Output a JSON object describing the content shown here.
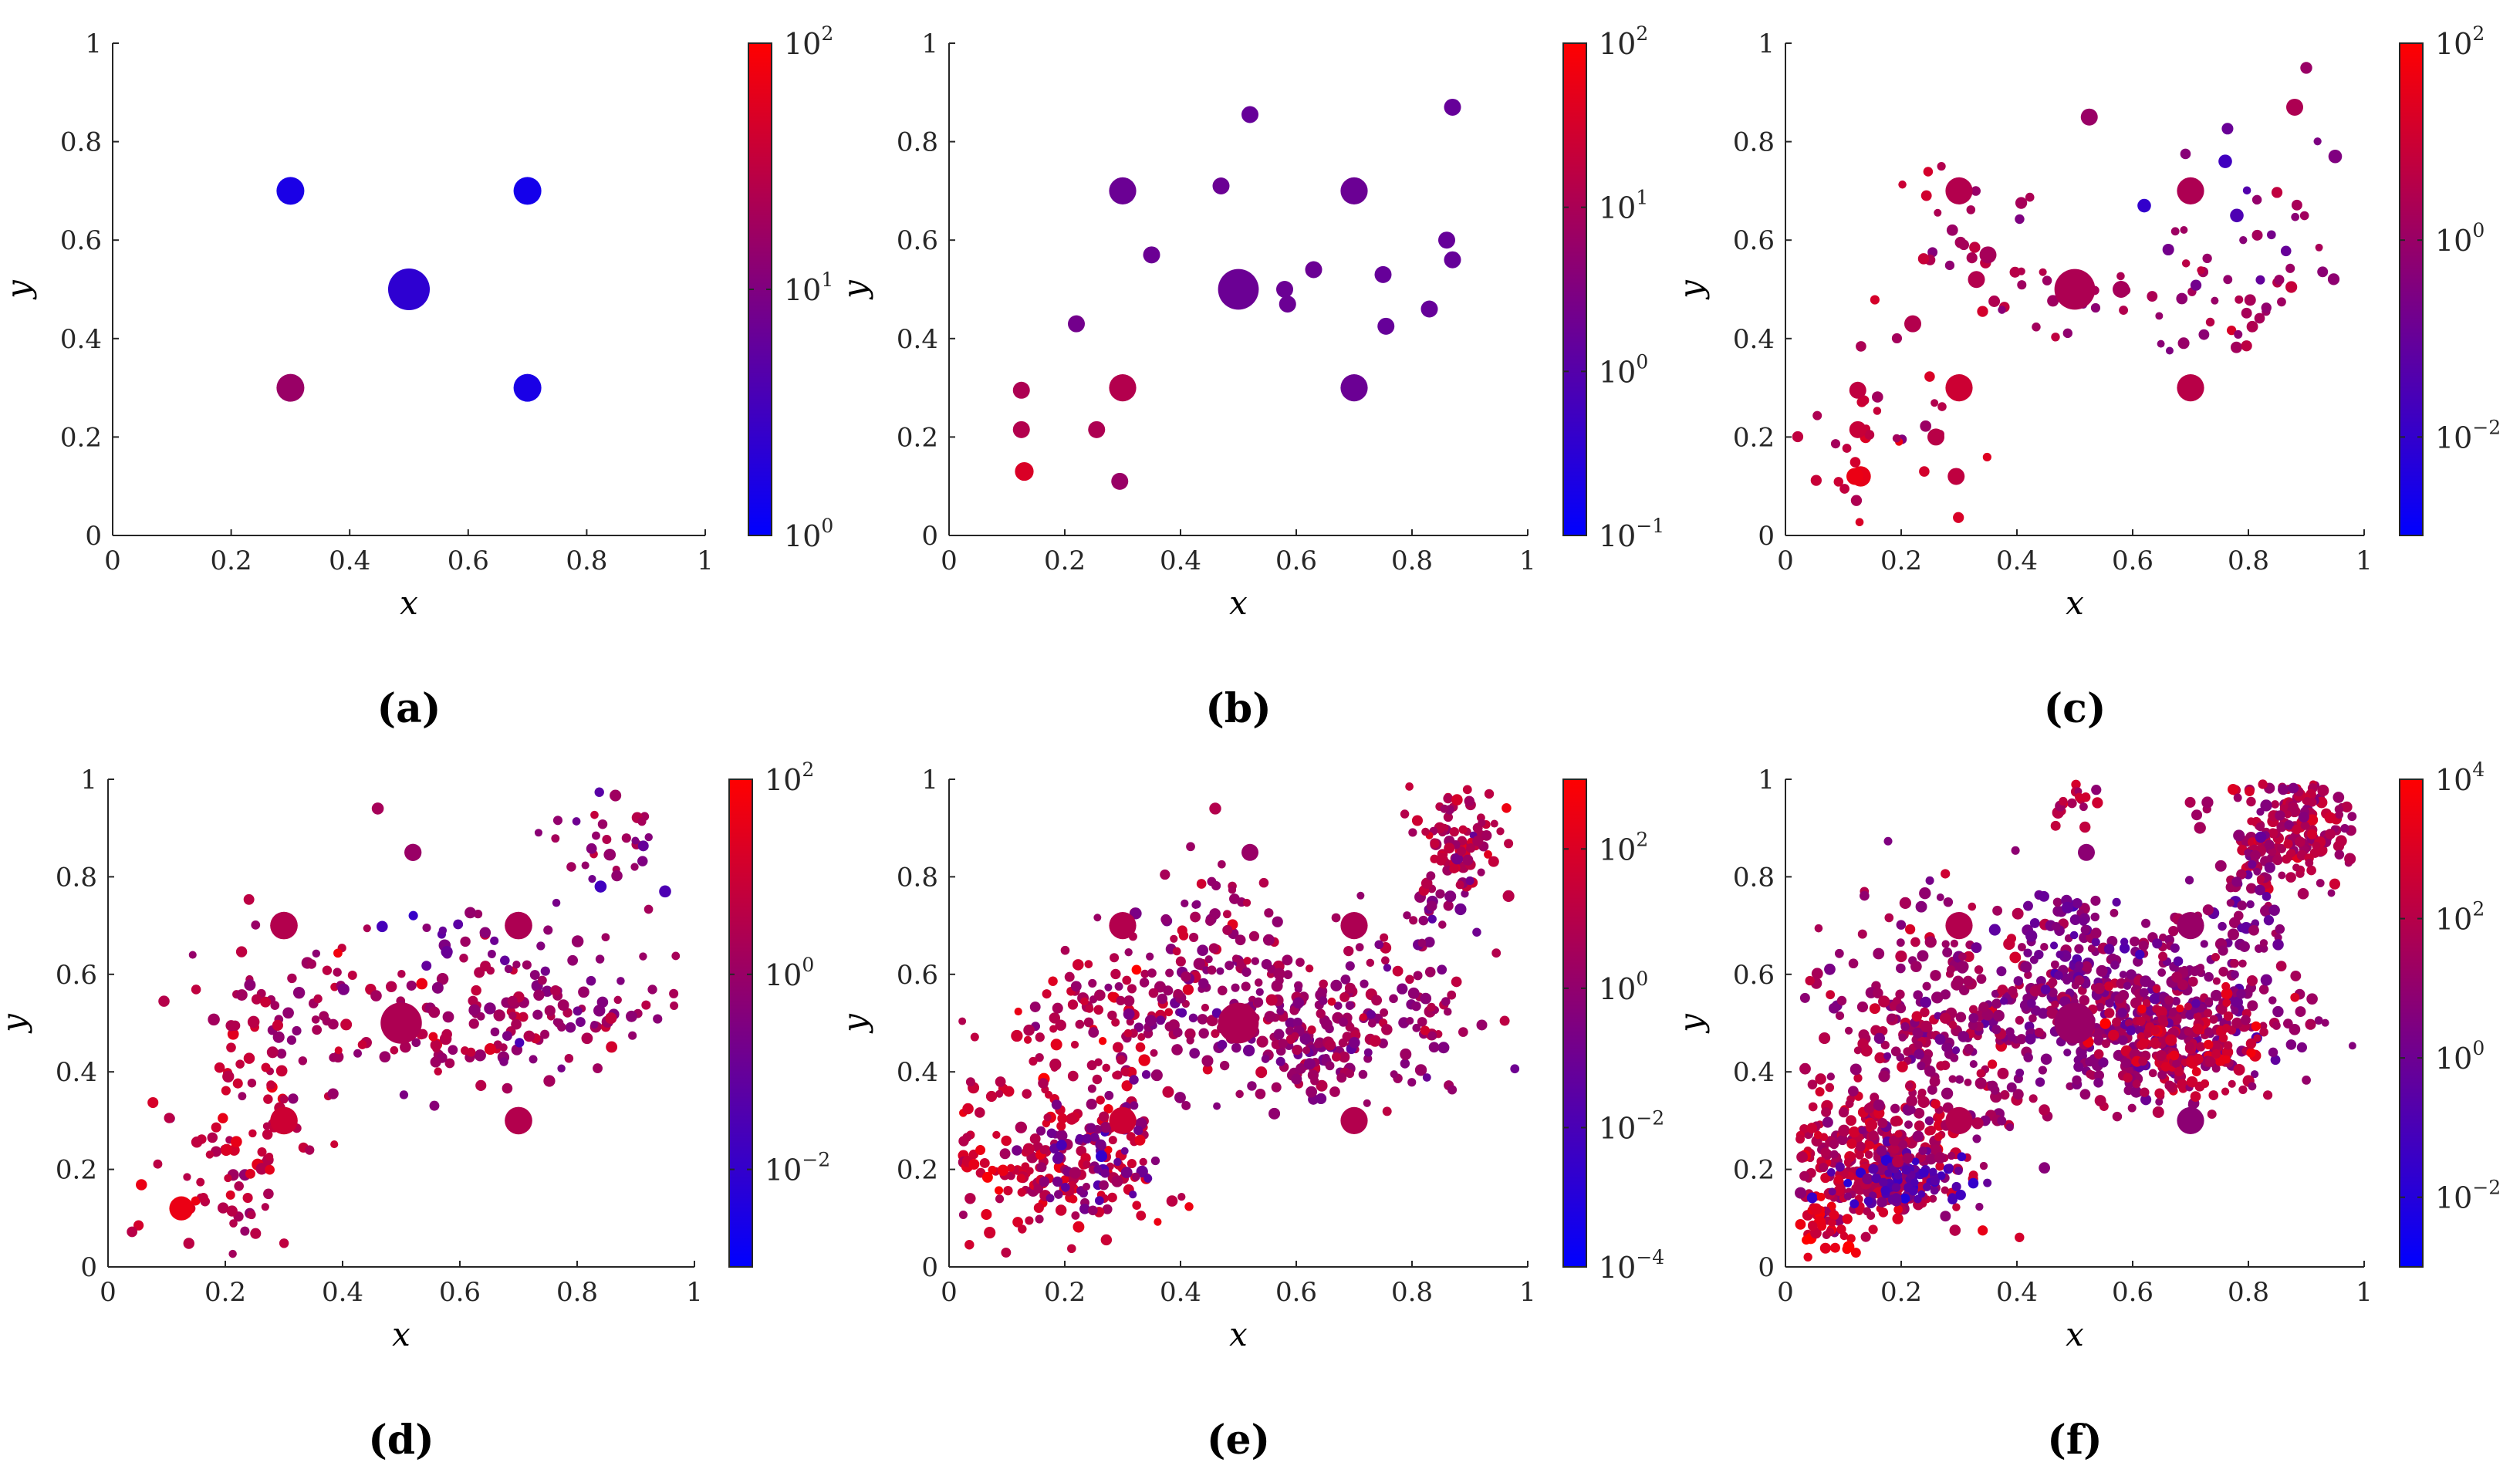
{
  "chart_data": [
    {
      "panel": "a",
      "label": "(a)",
      "type": "scatter",
      "xlabel": "x",
      "ylabel": "y",
      "xlim": [
        0,
        1
      ],
      "ylim": [
        0,
        1
      ],
      "xticks": [
        "0",
        "0.2",
        "0.4",
        "0.6",
        "0.8",
        "1"
      ],
      "yticks": [
        "0",
        "0.2",
        "0.4",
        "0.6",
        "0.8",
        "1"
      ],
      "colorbar": {
        "scale": "log",
        "min_exp": 0,
        "max_exp": 2,
        "ticks": [
          {
            "exp": 0,
            "label": "10",
            "sup": "0"
          },
          {
            "exp": 1,
            "label": "10",
            "sup": "1"
          },
          {
            "exp": 2,
            "label": "10",
            "sup": "2"
          }
        ]
      },
      "points": [
        [
          0.5,
          0.5,
          2.4,
          0.18
        ],
        [
          0.3,
          0.7,
          1.6,
          0.1
        ],
        [
          0.7,
          0.7,
          1.6,
          0.08
        ],
        [
          0.3,
          0.3,
          1.6,
          0.6
        ],
        [
          0.7,
          0.3,
          1.6,
          0.1
        ]
      ],
      "clusters": []
    },
    {
      "panel": "b",
      "label": "(b)",
      "type": "scatter",
      "xlabel": "x",
      "ylabel": "y",
      "xlim": [
        0,
        1
      ],
      "ylim": [
        0,
        1
      ],
      "xticks": [
        "0",
        "0.2",
        "0.4",
        "0.6",
        "0.8",
        "1"
      ],
      "yticks": [
        "0",
        "0.2",
        "0.4",
        "0.6",
        "0.8",
        "1"
      ],
      "colorbar": {
        "scale": "log",
        "min_exp": -1,
        "max_exp": 2,
        "ticks": [
          {
            "exp": -1,
            "label": "10",
            "sup": "−1"
          },
          {
            "exp": 0,
            "label": "10",
            "sup": "0"
          },
          {
            "exp": 1,
            "label": "10",
            "sup": "1"
          },
          {
            "exp": 2,
            "label": "10",
            "sup": "2"
          }
        ]
      },
      "points": [
        [
          0.5,
          0.5,
          2.4,
          0.42
        ],
        [
          0.3,
          0.7,
          1.6,
          0.42
        ],
        [
          0.7,
          0.7,
          1.6,
          0.42
        ],
        [
          0.3,
          0.3,
          1.6,
          0.7
        ],
        [
          0.7,
          0.3,
          1.6,
          0.42
        ],
        [
          0.52,
          0.855,
          1.0,
          0.4
        ],
        [
          0.87,
          0.87,
          1.0,
          0.4
        ],
        [
          0.47,
          0.71,
          1.0,
          0.42
        ],
        [
          0.35,
          0.57,
          1.0,
          0.42
        ],
        [
          0.22,
          0.43,
          1.0,
          0.45
        ],
        [
          0.58,
          0.5,
          1.0,
          0.42
        ],
        [
          0.585,
          0.47,
          1.0,
          0.42
        ],
        [
          0.63,
          0.54,
          1.0,
          0.42
        ],
        [
          0.75,
          0.53,
          1.0,
          0.4
        ],
        [
          0.755,
          0.425,
          1.0,
          0.4
        ],
        [
          0.83,
          0.46,
          1.0,
          0.4
        ],
        [
          0.86,
          0.6,
          1.0,
          0.4
        ],
        [
          0.87,
          0.56,
          1.0,
          0.4
        ],
        [
          0.125,
          0.295,
          1.0,
          0.68
        ],
        [
          0.125,
          0.215,
          1.0,
          0.7
        ],
        [
          0.13,
          0.13,
          1.1,
          0.85
        ],
        [
          0.255,
          0.215,
          1.0,
          0.68
        ],
        [
          0.295,
          0.11,
          1.0,
          0.6
        ]
      ],
      "clusters": []
    },
    {
      "panel": "c",
      "label": "(c)",
      "type": "scatter",
      "xlabel": "x",
      "ylabel": "y",
      "xlim": [
        0,
        1
      ],
      "ylim": [
        0,
        1
      ],
      "xticks": [
        "0",
        "0.2",
        "0.4",
        "0.6",
        "0.8",
        "1"
      ],
      "yticks": [
        "0",
        "0.2",
        "0.4",
        "0.6",
        "0.8",
        "1"
      ],
      "colorbar": {
        "scale": "log",
        "min_exp": -3,
        "max_exp": 2,
        "ticks": [
          {
            "exp": -2,
            "label": "10",
            "sup": "−2"
          },
          {
            "exp": 0,
            "label": "10",
            "sup": "0"
          },
          {
            "exp": 2,
            "label": "10",
            "sup": "2"
          }
        ]
      },
      "points": [
        [
          0.5,
          0.5,
          2.4,
          0.68
        ],
        [
          0.3,
          0.7,
          1.6,
          0.7
        ],
        [
          0.7,
          0.7,
          1.6,
          0.68
        ],
        [
          0.3,
          0.3,
          1.6,
          0.8
        ],
        [
          0.7,
          0.3,
          1.6,
          0.72
        ],
        [
          0.525,
          0.85,
          1.0,
          0.6
        ],
        [
          0.88,
          0.87,
          1.0,
          0.68
        ],
        [
          0.62,
          0.67,
          0.8,
          0.2
        ],
        [
          0.35,
          0.57,
          1.0,
          0.65
        ],
        [
          0.22,
          0.43,
          1.0,
          0.7
        ],
        [
          0.125,
          0.295,
          1.0,
          0.75
        ],
        [
          0.125,
          0.215,
          1.0,
          0.78
        ],
        [
          0.13,
          0.12,
          1.2,
          0.9
        ],
        [
          0.12,
          0.12,
          1.0,
          0.92
        ],
        [
          0.295,
          0.12,
          1.0,
          0.75
        ],
        [
          0.26,
          0.2,
          1.0,
          0.72
        ],
        [
          0.33,
          0.52,
          1.0,
          0.7
        ],
        [
          0.58,
          0.5,
          1.0,
          0.65
        ],
        [
          0.78,
          0.65,
          0.8,
          0.3
        ],
        [
          0.76,
          0.76,
          0.8,
          0.25
        ],
        [
          0.95,
          0.77,
          0.8,
          0.5
        ],
        [
          0.9,
          0.95,
          0.7,
          0.6
        ]
      ],
      "clusters": [
        [
          0.15,
          0.22,
          0.08,
          0.08,
          25,
          0.75
        ],
        [
          0.32,
          0.6,
          0.08,
          0.06,
          18,
          0.68
        ],
        [
          0.5,
          0.48,
          0.14,
          0.05,
          25,
          0.65
        ],
        [
          0.75,
          0.5,
          0.07,
          0.1,
          22,
          0.6
        ],
        [
          0.87,
          0.58,
          0.06,
          0.08,
          12,
          0.62
        ],
        [
          0.8,
          0.75,
          0.08,
          0.1,
          12,
          0.55
        ],
        [
          0.25,
          0.4,
          0.06,
          0.15,
          15,
          0.72
        ]
      ]
    },
    {
      "panel": "d",
      "label": "(d)",
      "type": "scatter",
      "xlabel": "x",
      "ylabel": "y",
      "xlim": [
        0,
        1
      ],
      "ylim": [
        0,
        1
      ],
      "xticks": [
        "0",
        "0.2",
        "0.4",
        "0.6",
        "0.8",
        "1"
      ],
      "yticks": [
        "0",
        "0.2",
        "0.4",
        "0.6",
        "0.8",
        "1"
      ],
      "colorbar": {
        "scale": "log",
        "min_exp": -3,
        "max_exp": 2,
        "ticks": [
          {
            "exp": -2,
            "label": "10",
            "sup": "−2"
          },
          {
            "exp": 0,
            "label": "10",
            "sup": "0"
          },
          {
            "exp": 2,
            "label": "10",
            "sup": "2"
          }
        ]
      },
      "points": [
        [
          0.5,
          0.5,
          2.4,
          0.68
        ],
        [
          0.3,
          0.7,
          1.6,
          0.7
        ],
        [
          0.7,
          0.7,
          1.6,
          0.68
        ],
        [
          0.3,
          0.3,
          1.6,
          0.8
        ],
        [
          0.7,
          0.3,
          1.6,
          0.7
        ],
        [
          0.52,
          0.85,
          1.0,
          0.6
        ],
        [
          0.125,
          0.12,
          1.4,
          0.92
        ],
        [
          0.46,
          0.94,
          0.7,
          0.65
        ],
        [
          0.95,
          0.77,
          0.7,
          0.3
        ],
        [
          0.84,
          0.78,
          0.7,
          0.25
        ]
      ],
      "clusters": [
        [
          0.2,
          0.22,
          0.08,
          0.08,
          70,
          0.75
        ],
        [
          0.3,
          0.55,
          0.1,
          0.08,
          40,
          0.68
        ],
        [
          0.55,
          0.5,
          0.1,
          0.07,
          70,
          0.65
        ],
        [
          0.75,
          0.52,
          0.09,
          0.08,
          70,
          0.62
        ],
        [
          0.85,
          0.88,
          0.07,
          0.07,
          35,
          0.6
        ],
        [
          0.6,
          0.68,
          0.07,
          0.05,
          15,
          0.45
        ],
        [
          0.25,
          0.4,
          0.07,
          0.12,
          30,
          0.72
        ],
        [
          0.9,
          0.55,
          0.05,
          0.05,
          12,
          0.6
        ]
      ]
    },
    {
      "panel": "e",
      "label": "(e)",
      "type": "scatter",
      "xlabel": "x",
      "ylabel": "y",
      "xlim": [
        0,
        1
      ],
      "ylim": [
        0,
        1
      ],
      "xticks": [
        "0",
        "0.2",
        "0.4",
        "0.6",
        "0.8",
        "1"
      ],
      "yticks": [
        "0",
        "0.2",
        "0.4",
        "0.6",
        "0.8",
        "1"
      ],
      "colorbar": {
        "scale": "log",
        "min_exp": -4,
        "max_exp": 3,
        "ticks": [
          {
            "exp": -4,
            "label": "10",
            "sup": "−4"
          },
          {
            "exp": -2,
            "label": "10",
            "sup": "−2"
          },
          {
            "exp": 0,
            "label": "10",
            "sup": "0"
          },
          {
            "exp": 2,
            "label": "10",
            "sup": "2"
          }
        ]
      },
      "points": [
        [
          0.5,
          0.5,
          2.4,
          0.68
        ],
        [
          0.3,
          0.7,
          1.6,
          0.7
        ],
        [
          0.7,
          0.7,
          1.6,
          0.68
        ],
        [
          0.3,
          0.3,
          1.6,
          0.8
        ],
        [
          0.7,
          0.3,
          1.6,
          0.7
        ],
        [
          0.52,
          0.85,
          1.0,
          0.6
        ],
        [
          0.46,
          0.94,
          0.7,
          0.7
        ]
      ],
      "clusters": [
        [
          0.18,
          0.22,
          0.09,
          0.09,
          180,
          0.78
        ],
        [
          0.28,
          0.5,
          0.1,
          0.09,
          110,
          0.72
        ],
        [
          0.62,
          0.5,
          0.13,
          0.07,
          260,
          0.6
        ],
        [
          0.88,
          0.88,
          0.05,
          0.07,
          90,
          0.72
        ],
        [
          0.4,
          0.6,
          0.06,
          0.1,
          50,
          0.62
        ],
        [
          0.24,
          0.22,
          0.05,
          0.06,
          60,
          0.45
        ],
        [
          0.5,
          0.75,
          0.06,
          0.08,
          25,
          0.6
        ],
        [
          0.83,
          0.7,
          0.04,
          0.08,
          25,
          0.55
        ]
      ]
    },
    {
      "panel": "f",
      "label": "(f)",
      "type": "scatter",
      "xlabel": "x",
      "ylabel": "y",
      "xlim": [
        0,
        1
      ],
      "ylim": [
        0,
        1
      ],
      "xticks": [
        "0",
        "0.2",
        "0.4",
        "0.6",
        "0.8",
        "1"
      ],
      "yticks": [
        "0",
        "0.2",
        "0.4",
        "0.6",
        "0.8",
        "1"
      ],
      "colorbar": {
        "scale": "log",
        "min_exp": -3,
        "max_exp": 4,
        "ticks": [
          {
            "exp": -2,
            "label": "10",
            "sup": "−2"
          },
          {
            "exp": 0,
            "label": "10",
            "sup": "0"
          },
          {
            "exp": 2,
            "label": "10",
            "sup": "2"
          },
          {
            "exp": 4,
            "label": "10",
            "sup": "4"
          }
        ]
      },
      "points": [
        [
          0.5,
          0.5,
          2.4,
          0.6
        ],
        [
          0.3,
          0.7,
          1.6,
          0.7
        ],
        [
          0.7,
          0.7,
          1.6,
          0.6
        ],
        [
          0.3,
          0.3,
          1.6,
          0.7
        ],
        [
          0.7,
          0.3,
          1.6,
          0.55
        ],
        [
          0.52,
          0.85,
          1.0,
          0.55
        ]
      ],
      "clusters": [
        [
          0.15,
          0.22,
          0.08,
          0.07,
          320,
          0.72
        ],
        [
          0.2,
          0.18,
          0.06,
          0.03,
          80,
          0.35
        ],
        [
          0.25,
          0.5,
          0.1,
          0.13,
          250,
          0.62
        ],
        [
          0.6,
          0.52,
          0.13,
          0.08,
          500,
          0.55
        ],
        [
          0.68,
          0.45,
          0.08,
          0.05,
          150,
          0.75
        ],
        [
          0.88,
          0.9,
          0.06,
          0.06,
          200,
          0.7
        ],
        [
          0.8,
          0.76,
          0.04,
          0.08,
          60,
          0.55
        ],
        [
          0.5,
          0.96,
          0.02,
          0.03,
          25,
          0.7
        ],
        [
          0.05,
          0.08,
          0.03,
          0.03,
          40,
          0.9
        ],
        [
          0.5,
          0.66,
          0.05,
          0.06,
          50,
          0.45
        ]
      ]
    }
  ]
}
